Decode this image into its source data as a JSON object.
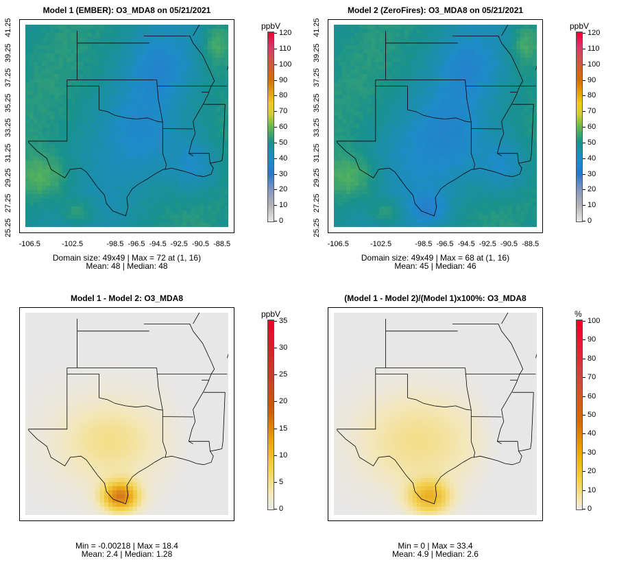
{
  "panels": [
    {
      "title": "Model 1 (EMBER): O3_MDA8 on 05/21/2021",
      "unit": "ppbV",
      "colorbar_labels": [
        "120",
        "110",
        "100",
        "90",
        "80",
        "70",
        "60",
        "50",
        "40",
        "30",
        "20",
        "10",
        "0"
      ],
      "colorbar_type": "ozone",
      "y_ticks": [
        "41.25",
        "39.25",
        "37.25",
        "35.25",
        "33.25",
        "31.25",
        "29.25",
        "27.25",
        "25.25"
      ],
      "x_ticks": [
        "-106.5",
        "-102.5",
        "-98.5",
        "-96.5",
        "-94.5",
        "-92.5",
        "-90.5",
        "-88.5"
      ],
      "stat_line1": "Domain size: 49x49 | Max = 72 at (1, 16)",
      "stat_line2": "Mean: 48 |  Median: 48",
      "field": "model1"
    },
    {
      "title": "Model 2 (ZeroFires): O3_MDA8 on 05/21/2021",
      "unit": "ppbV",
      "colorbar_labels": [
        "120",
        "110",
        "100",
        "90",
        "80",
        "70",
        "60",
        "50",
        "40",
        "30",
        "20",
        "10",
        "0"
      ],
      "colorbar_type": "ozone",
      "y_ticks": [
        "41.25",
        "39.25",
        "37.25",
        "35.25",
        "33.25",
        "31.25",
        "29.25",
        "27.25",
        "25.25"
      ],
      "x_ticks": [
        "-106.5",
        "-102.5",
        "-98.5",
        "-96.5",
        "-94.5",
        "-92.5",
        "-90.5",
        "-88.5"
      ],
      "stat_line1": "Domain size: 49x49 | Max = 68 at (1, 16)",
      "stat_line2": "Mean: 45 |  Median: 46",
      "field": "model2"
    },
    {
      "title": "Model 1 - Model 2: O3_MDA8",
      "unit": "ppbV",
      "colorbar_labels": [
        "35",
        "30",
        "25",
        "20",
        "15",
        "10",
        "5",
        "0"
      ],
      "colorbar_type": "diff",
      "y_ticks": [],
      "x_ticks": [],
      "stat_line1": "Min = -0.00218 | Max = 18.4",
      "stat_line2": "Mean: 2.4 |  Median: 1.28",
      "field": "diff"
    },
    {
      "title": "(Model 1 - Model 2)/(Model 1)x100%: O3_MDA8",
      "unit": "%",
      "colorbar_labels": [
        "100",
        "90",
        "80",
        "70",
        "60",
        "50",
        "40",
        "30",
        "20",
        "10",
        "0"
      ],
      "colorbar_type": "diff",
      "y_ticks": [],
      "x_ticks": [],
      "stat_line1": "Min = 0 | Max = 33.4",
      "stat_line2": "Mean: 4.9 |  Median: 2.6",
      "field": "pct"
    }
  ]
}
